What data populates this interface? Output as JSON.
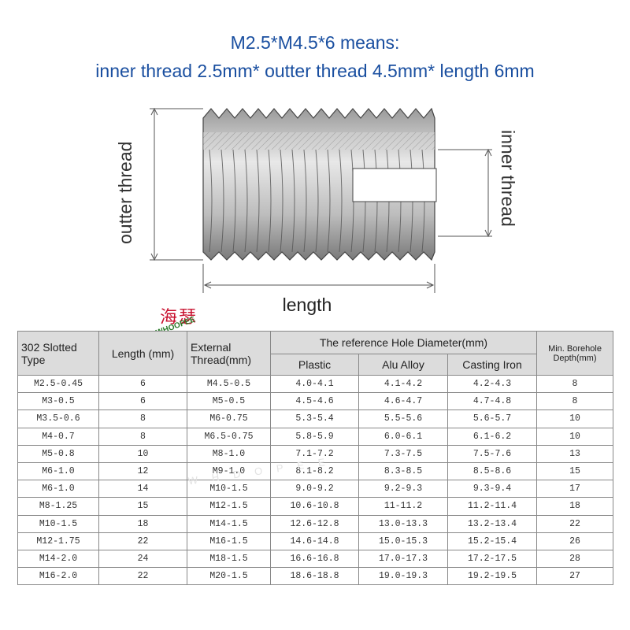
{
  "header": {
    "line1": "M2.5*M4.5*6 means:",
    "line2": "inner thread 2.5mm* outter thread 4.5mm* length 6mm"
  },
  "diagram": {
    "outter_label": "outter thread",
    "inner_label": "inner thread",
    "length_label": "length"
  },
  "logo": {
    "cn": "海瑟",
    "en": "WHOOPEE"
  },
  "watermark": "WHDOPEE",
  "table": {
    "col1": "302 Slotted Type",
    "col2": "Length (mm)",
    "col3": "External Thread(mm)",
    "group": "The reference Hole Diameter(mm)",
    "sub1": "Plastic",
    "sub2": "Alu Alloy",
    "sub3": "Casting Iron",
    "col_last": "Min. Borehole Depth(mm)",
    "rows": [
      [
        "M2.5-0.45",
        "6",
        "M4.5-0.5",
        "4.0-4.1",
        "4.1-4.2",
        "4.2-4.3",
        "8"
      ],
      [
        "M3-0.5",
        "6",
        "M5-0.5",
        "4.5-4.6",
        "4.6-4.7",
        "4.7-4.8",
        "8"
      ],
      [
        "M3.5-0.6",
        "8",
        "M6-0.75",
        "5.3-5.4",
        "5.5-5.6",
        "5.6-5.7",
        "10"
      ],
      [
        "M4-0.7",
        "8",
        "M6.5-0.75",
        "5.8-5.9",
        "6.0-6.1",
        "6.1-6.2",
        "10"
      ],
      [
        "M5-0.8",
        "10",
        "M8-1.0",
        "7.1-7.2",
        "7.3-7.5",
        "7.5-7.6",
        "13"
      ],
      [
        "M6-1.0",
        "12",
        "M9-1.0",
        "8.1-8.2",
        "8.3-8.5",
        "8.5-8.6",
        "15"
      ],
      [
        "M6-1.0",
        "14",
        "M10-1.5",
        "9.0-9.2",
        "9.2-9.3",
        "9.3-9.4",
        "17"
      ],
      [
        "M8-1.25",
        "15",
        "M12-1.5",
        "10.6-10.8",
        "11-11.2",
        "11.2-11.4",
        "18"
      ],
      [
        "M10-1.5",
        "18",
        "M14-1.5",
        "12.6-12.8",
        "13.0-13.3",
        "13.2-13.4",
        "22"
      ],
      [
        "M12-1.75",
        "22",
        "M16-1.5",
        "14.6-14.8",
        "15.0-15.3",
        "15.2-15.4",
        "26"
      ],
      [
        "M14-2.0",
        "24",
        "M18-1.5",
        "16.6-16.8",
        "17.0-17.3",
        "17.2-17.5",
        "28"
      ],
      [
        "M16-2.0",
        "22",
        "M20-1.5",
        "18.6-18.8",
        "19.0-19.3",
        "19.2-19.5",
        "27"
      ]
    ]
  }
}
